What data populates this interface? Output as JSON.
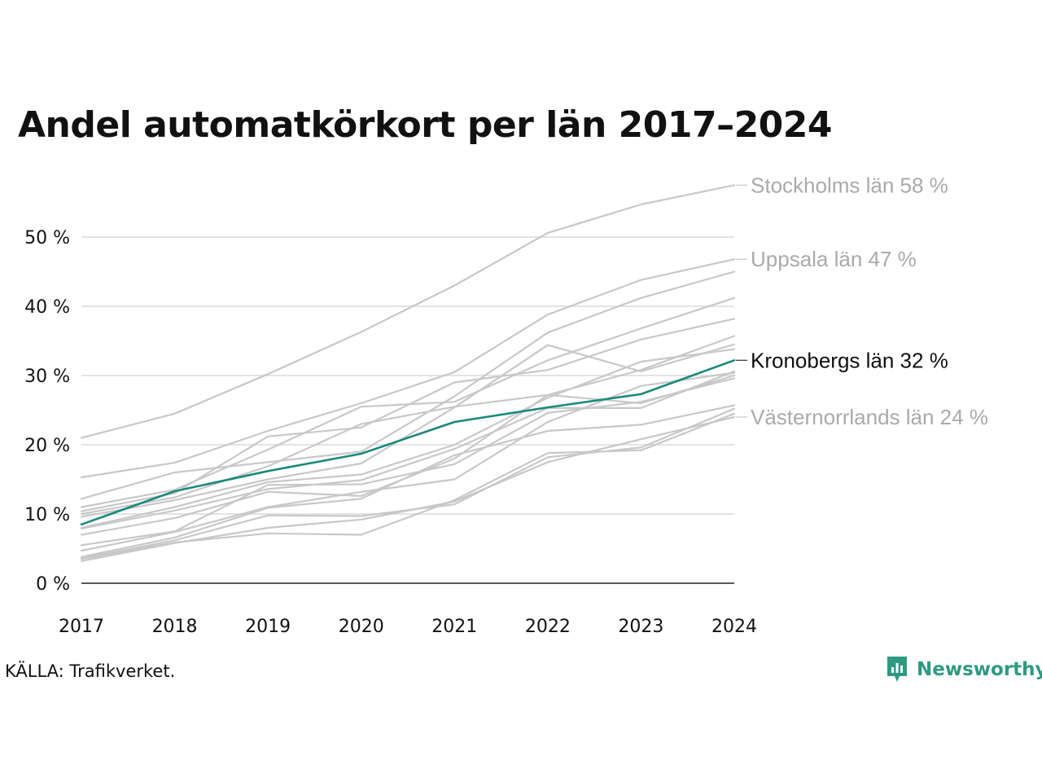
{
  "title": "Andel automatkörkort per län 2017–2024",
  "source": "KÄLLA: Trafikverket.",
  "brand": {
    "name": "Newsworthy",
    "color": "#2e9a82",
    "icon": "newsworthy-logo-icon"
  },
  "chart_data": {
    "type": "line",
    "x": [
      "2017",
      "2018",
      "2019",
      "2020",
      "2021",
      "2022",
      "2023",
      "2024"
    ],
    "ylim": [
      0,
      60
    ],
    "yticks": [
      0,
      10,
      20,
      30,
      40,
      50
    ],
    "ytick_labels": [
      "0 %",
      "10 %",
      "20 %",
      "30 %",
      "40 %",
      "50 %"
    ],
    "grid": true,
    "colors": {
      "background_series": "#c8c8c8",
      "highlight": "#1a8a7c",
      "label_muted": "#aaaaaa",
      "label_highlight": "#111111"
    },
    "series": [
      {
        "name": "Stockholms län",
        "label": "Stockholms län 58 %",
        "values": [
          21.0,
          24.5,
          30.2,
          36.3,
          43.0,
          50.6,
          54.7,
          57.5
        ]
      },
      {
        "name": "Uppsala län",
        "label": "Uppsala län 47 %",
        "values": [
          15.3,
          17.4,
          22.0,
          26.0,
          30.5,
          38.8,
          43.8,
          46.8
        ]
      },
      {
        "values": [
          12.2,
          16.0,
          17.5,
          19.0,
          27.0,
          36.2,
          41.2,
          45.0
        ]
      },
      {
        "values": [
          11.0,
          13.5,
          19.3,
          25.5,
          26.2,
          32.2,
          36.8,
          41.2
        ]
      },
      {
        "values": [
          10.4,
          13.0,
          21.2,
          22.5,
          29.0,
          30.8,
          35.2,
          38.2
        ]
      },
      {
        "values": [
          10.0,
          12.4,
          16.9,
          23.0,
          25.5,
          27.2,
          30.8,
          35.7
        ]
      },
      {
        "values": [
          9.6,
          12.0,
          15.0,
          17.3,
          25.4,
          34.4,
          30.6,
          34.5
        ]
      },
      {
        "name": "Kronobergs län",
        "label": "Kronobergs län 32 %",
        "highlight": true,
        "values": [
          8.5,
          13.3,
          16.2,
          18.7,
          23.3,
          25.4,
          27.3,
          32.2
        ]
      },
      {
        "values": [
          8.0,
          11.0,
          14.6,
          15.7,
          20.0,
          26.8,
          32.0,
          33.8
        ]
      },
      {
        "values": [
          7.9,
          10.5,
          13.6,
          14.9,
          19.4,
          25.3,
          25.3,
          30.6
        ]
      },
      {
        "values": [
          7.0,
          9.4,
          13.2,
          12.6,
          18.0,
          27.2,
          26.0,
          30.0
        ]
      },
      {
        "values": [
          5.5,
          7.5,
          14.2,
          14.3,
          17.2,
          24.6,
          26.2,
          29.6
        ]
      },
      {
        "values": [
          4.7,
          7.4,
          11.0,
          13.2,
          15.0,
          23.3,
          28.5,
          30.4
        ]
      },
      {
        "values": [
          3.8,
          6.6,
          10.9,
          12.2,
          18.5,
          22.0,
          22.9,
          25.7
        ]
      },
      {
        "values": [
          3.6,
          6.2,
          9.8,
          9.7,
          11.4,
          18.2,
          19.6,
          25.2
        ]
      },
      {
        "name": "Västernorrlands län",
        "label": "Västernorrlands län 24 %",
        "values": [
          3.2,
          5.8,
          8.0,
          9.2,
          11.8,
          17.5,
          20.8,
          24.0
        ]
      },
      {
        "values": [
          3.5,
          5.9,
          7.2,
          7.0,
          12.0,
          18.8,
          19.2,
          24.5
        ]
      }
    ]
  }
}
